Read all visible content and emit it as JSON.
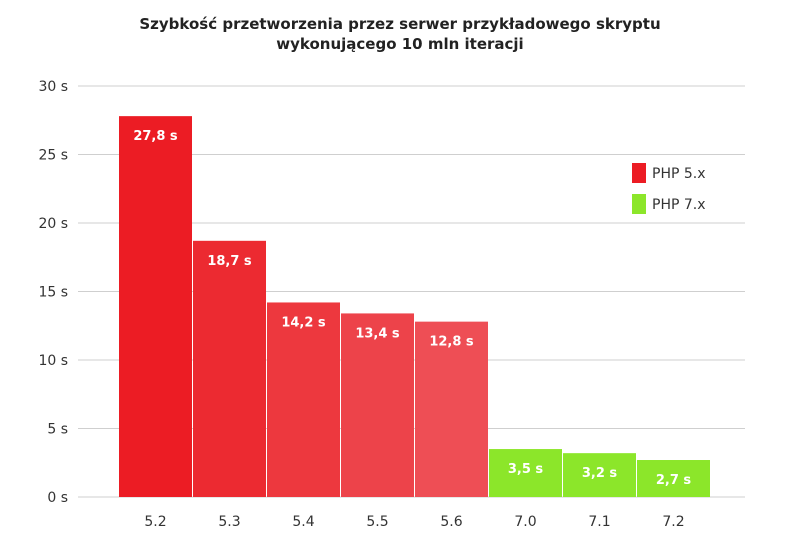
{
  "chart_data": {
    "type": "bar",
    "title_line1": "Szybkość przetworzenia przez serwer przykładowego skryptu",
    "title_line2": "wykonującego 10 mln iteracji",
    "categories": [
      "5.2",
      "5.3",
      "5.4",
      "5.5",
      "5.6",
      "7.0",
      "7.1",
      "7.2"
    ],
    "values": [
      27.8,
      18.7,
      14.2,
      13.4,
      12.8,
      3.5,
      3.2,
      2.7
    ],
    "value_labels": [
      "27,8 s",
      "18,7 s",
      "14,2 s",
      "13,4 s",
      "12,8 s",
      "3,5 s",
      "3,2 s",
      "2,7 s"
    ],
    "series_of_bar": [
      "PHP 5.x",
      "PHP 5.x",
      "PHP 5.x",
      "PHP 5.x",
      "PHP 5.x",
      "PHP 7.x",
      "PHP 7.x",
      "PHP 7.x"
    ],
    "bar_colors": [
      "#ec1c24",
      "#ec2a31",
      "#ed383e",
      "#ed434a",
      "#ee4e55",
      "#8ce62a",
      "#8ce62a",
      "#8ce62a"
    ],
    "yticks": [
      0,
      5,
      10,
      15,
      20,
      25,
      30
    ],
    "ytick_labels": [
      "0 s",
      "5 s",
      "10 s",
      "15 s",
      "20 s",
      "25 s",
      "30 s"
    ],
    "ylim": [
      0,
      30
    ],
    "grid": true,
    "legend_position": "right",
    "legend": [
      {
        "name": "PHP 5.x",
        "color": "#ec1c24"
      },
      {
        "name": "PHP 7.x",
        "color": "#8ce62a"
      }
    ]
  }
}
